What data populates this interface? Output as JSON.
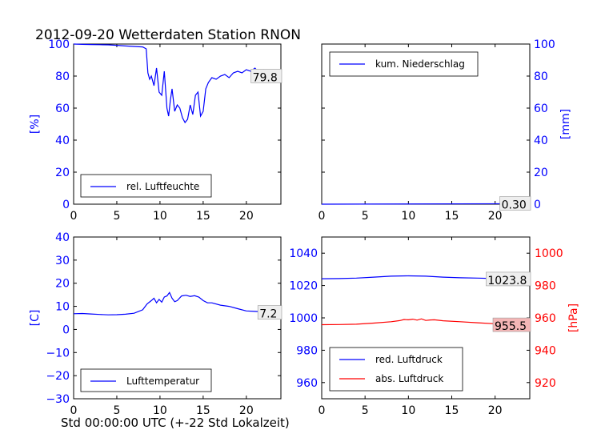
{
  "title": "2012-09-20 Wetterdaten Station RNON",
  "xlabel": "Std 00:00:00 UTC (+-22 Std Lokalzeit)",
  "colors": {
    "blue": "#0000ff",
    "red": "#ff0000",
    "value_box_pink": "#f4b6b6",
    "value_box_grey": "#eeeeee"
  },
  "chart_data": [
    {
      "id": "humidity",
      "type": "line",
      "ylabel": "[%]",
      "xlim": [
        0,
        24
      ],
      "ylim": [
        0,
        100
      ],
      "xticks": [
        "0",
        "5",
        "10",
        "15",
        "20"
      ],
      "yticks": [
        "0",
        "20",
        "40",
        "60",
        "80",
        "100"
      ],
      "legend": "lower center",
      "series": [
        {
          "name": "rel. Luftfeuchte",
          "color": "#0000ff",
          "x": [
            0,
            1,
            2,
            3,
            4,
            5,
            6,
            7,
            8,
            8.4,
            8.6,
            8.8,
            9.0,
            9.3,
            9.6,
            9.9,
            10.2,
            10.5,
            10.8,
            11.0,
            11.2,
            11.4,
            11.7,
            12.0,
            12.3,
            12.6,
            12.9,
            13.2,
            13.5,
            13.8,
            14.1,
            14.4,
            14.7,
            15.0,
            15.3,
            15.6,
            16.0,
            16.5,
            17.0,
            17.5,
            18.0,
            18.5,
            19.0,
            19.5,
            20.0,
            20.5,
            21.0,
            21.5,
            22.0,
            22.5,
            23.0,
            23.5,
            24.0
          ],
          "y": [
            100,
            99.8,
            99.7,
            99.6,
            99.5,
            99.2,
            98.8,
            98.5,
            98.2,
            97,
            82,
            78,
            80,
            74,
            85,
            70,
            68,
            83,
            60,
            55,
            65,
            72,
            58,
            62,
            60,
            54,
            51,
            53,
            62,
            56,
            68,
            70,
            55,
            58,
            72,
            76,
            79,
            78,
            80,
            81,
            79,
            82,
            83,
            82,
            84,
            83,
            85,
            82,
            84,
            80,
            81,
            80,
            79.8
          ]
        }
      ],
      "value_label": "79.8"
    },
    {
      "id": "precipitation",
      "type": "line",
      "ylabel": "[mm]",
      "xlim": [
        0,
        24
      ],
      "ylim": [
        0,
        100
      ],
      "xticks": [
        "0",
        "5",
        "10",
        "15",
        "20"
      ],
      "yticks": [
        "0",
        "20",
        "40",
        "60",
        "80",
        "100"
      ],
      "legend": "upper left",
      "series": [
        {
          "name": "kum. Niederschlag",
          "color": "#0000ff",
          "x": [
            0,
            24
          ],
          "y": [
            0,
            0.3
          ]
        }
      ],
      "value_label": "0.30"
    },
    {
      "id": "temperature",
      "type": "line",
      "ylabel": "[C]",
      "xlim": [
        0,
        24
      ],
      "ylim": [
        -30,
        40
      ],
      "xticks": [
        "0",
        "5",
        "10",
        "15",
        "20"
      ],
      "yticks": [
        "−30",
        "−20",
        "−10",
        "0",
        "10",
        "20",
        "30",
        "40"
      ],
      "legend": "lower center",
      "series": [
        {
          "name": "Lufttemperatur",
          "color": "#0000ff",
          "x": [
            0,
            1,
            2,
            3,
            4,
            5,
            6,
            7,
            8,
            8.5,
            9,
            9.3,
            9.6,
            9.9,
            10.2,
            10.5,
            10.8,
            11.1,
            11.4,
            11.7,
            12,
            12.5,
            13,
            13.5,
            14,
            14.5,
            15,
            15.5,
            16,
            17,
            18,
            19,
            20,
            21,
            22,
            23,
            24
          ],
          "y": [
            6.8,
            6.9,
            6.7,
            6.5,
            6.3,
            6.4,
            6.6,
            7,
            8.5,
            11,
            12.5,
            13.5,
            11.5,
            13,
            11.8,
            14,
            14.5,
            16,
            13.5,
            12,
            12.5,
            14.5,
            14.8,
            14.3,
            14.6,
            14.0,
            12.5,
            11.5,
            11.5,
            10.5,
            10,
            9,
            8,
            7.8,
            7.6,
            7.3,
            7.2
          ]
        }
      ],
      "value_label": "7.2"
    },
    {
      "id": "pressure",
      "type": "line",
      "ylabel": "[hPa]",
      "xlim": [
        0,
        24
      ],
      "ylim": [
        950,
        1050
      ],
      "y2lim": [
        910,
        1010
      ],
      "xticks": [
        "0",
        "5",
        "10",
        "15",
        "20"
      ],
      "yticks": [
        "960",
        "980",
        "1000",
        "1020",
        "1040"
      ],
      "y2ticks": [
        "920",
        "940",
        "960",
        "980",
        "1000"
      ],
      "legend": "lower left",
      "series": [
        {
          "name": "red. Luftdruck",
          "color": "#0000ff",
          "axis": "left",
          "x": [
            0,
            2,
            4,
            6,
            8,
            10,
            12,
            14,
            16,
            18,
            20,
            22,
            24
          ],
          "y": [
            1024.2,
            1024.3,
            1024.6,
            1025.2,
            1025.8,
            1026.0,
            1025.8,
            1025.2,
            1024.8,
            1024.6,
            1024.3,
            1024.0,
            1023.8
          ]
        },
        {
          "name": "abs. Luftdruck",
          "color": "#ff0000",
          "axis": "right",
          "x": [
            0,
            2,
            4,
            6,
            8,
            9,
            9.5,
            10,
            10.5,
            11,
            11.5,
            12,
            12.5,
            13,
            14,
            16,
            18,
            20,
            22,
            24
          ],
          "y": [
            955.8,
            955.9,
            956.1,
            956.8,
            957.6,
            958.3,
            959.0,
            958.8,
            959.2,
            958.6,
            959.4,
            958.4,
            958.7,
            958.8,
            958.2,
            957.6,
            957.0,
            956.4,
            955.8,
            955.5
          ]
        }
      ],
      "value_labels": [
        "1023.8",
        "955.5"
      ]
    }
  ]
}
